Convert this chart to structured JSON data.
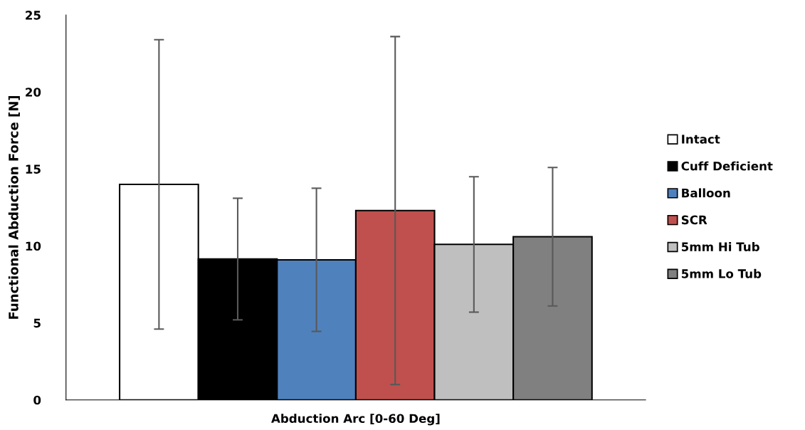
{
  "chart_data": {
    "type": "bar",
    "ylabel": "Functional Abduction Force [N]",
    "categories": [
      "Abduction Arc [0-60 Deg]"
    ],
    "series": [
      {
        "name": "Intact",
        "color": "#ffffff",
        "values": [
          14.0
        ],
        "errors": [
          9.4
        ]
      },
      {
        "name": "Cuff Deficient",
        "color": "#000000",
        "values": [
          9.15
        ],
        "errors": [
          3.95
        ]
      },
      {
        "name": "Balloon",
        "color": "#4f81bd",
        "values": [
          9.1
        ],
        "errors": [
          4.65
        ]
      },
      {
        "name": "SCR",
        "color": "#c0504d",
        "values": [
          12.3
        ],
        "errors": [
          11.3
        ]
      },
      {
        "name": "5mm Hi Tub",
        "color": "#bfbfbf",
        "values": [
          10.1
        ],
        "errors": [
          4.4
        ]
      },
      {
        "name": "5mm Lo Tub",
        "color": "#808080",
        "values": [
          10.6
        ],
        "errors": [
          4.5
        ]
      }
    ],
    "ylim": [
      0,
      25
    ],
    "yticks": [
      0,
      5,
      10,
      15,
      20,
      25
    ],
    "grid": false,
    "legend": "right"
  }
}
